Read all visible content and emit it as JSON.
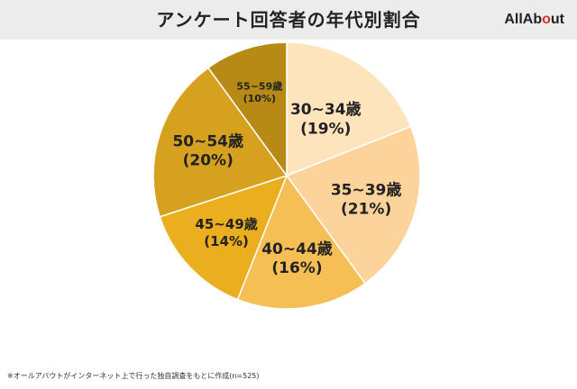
{
  "header": {
    "title": "アンケート回答者の年代別割合",
    "logo_main": "AllAb",
    "logo_o": "o",
    "logo_tail": "ut"
  },
  "colors": {
    "header_bg": "#ececec",
    "slices": [
      "#fde4bd",
      "#fcd39b",
      "#f6bf55",
      "#eaae1f",
      "#d5a11e",
      "#b78a16"
    ]
  },
  "chart_data": {
    "type": "pie",
    "categories": [
      "30~34歳",
      "35~39歳",
      "40~44歳",
      "45~49歳",
      "50~54歳",
      "55~59歳"
    ],
    "values": [
      19,
      21,
      16,
      14,
      20,
      10
    ],
    "display_labels": [
      "(19%)",
      "(21%)",
      "(16%)",
      "(14%)",
      "(20%)",
      "(10%)"
    ],
    "start": "12 o'clock, clockwise"
  },
  "footnote": "※オールアバウトがインターネット上で行った独自調査をもとに作成(n=525)"
}
